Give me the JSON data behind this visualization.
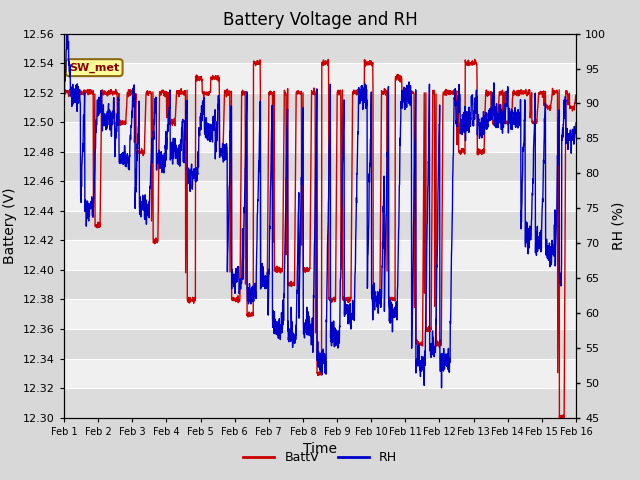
{
  "title": "Battery Voltage and RH",
  "xlabel": "Time",
  "ylabel_left": "Battery (V)",
  "ylabel_right": "RH (%)",
  "ylim_left": [
    12.3,
    12.56
  ],
  "ylim_right": [
    45,
    100
  ],
  "yticks_left": [
    12.3,
    12.32,
    12.34,
    12.36,
    12.38,
    12.4,
    12.42,
    12.44,
    12.46,
    12.48,
    12.5,
    12.52,
    12.54,
    12.56
  ],
  "yticks_right": [
    45,
    50,
    55,
    60,
    65,
    70,
    75,
    80,
    85,
    90,
    95,
    100
  ],
  "xtick_labels": [
    "Feb 1",
    "Feb 2",
    "Feb 3",
    "Feb 4",
    "Feb 5",
    "Feb 6",
    "Feb 7",
    "Feb 8",
    "Feb 9",
    "Feb 10",
    "Feb 11",
    "Feb 12",
    "Feb 13",
    "Feb 14",
    "Feb 15",
    "Feb 16"
  ],
  "color_batt": "#CC0000",
  "color_rh": "#0000CC",
  "legend_label_batt": "BattV",
  "legend_label_rh": "RH",
  "annotation_text": "SW_met",
  "bg_color": "#D8D8D8",
  "plot_bg": "#F0F0F0",
  "title_fontsize": 12,
  "axis_fontsize": 10,
  "tick_fontsize": 8
}
